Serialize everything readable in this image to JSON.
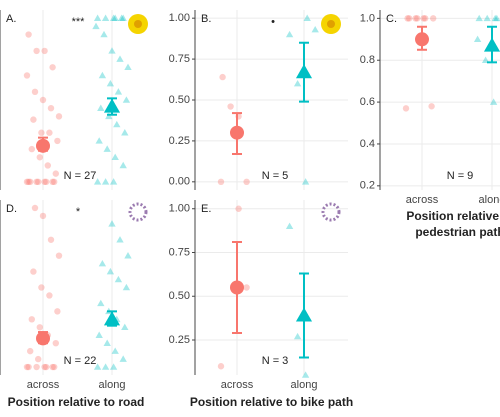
{
  "chart_data": [
    {
      "type": "dotplot",
      "panel": "A.",
      "significance": "***",
      "n_label": "N = 27",
      "ylim": [
        -0.05,
        1.05
      ],
      "series": [
        {
          "color": "#f8766d",
          "shape": "circle",
          "mean": 0.22,
          "lower": 0.19,
          "upper": 0.27,
          "points": [
            0,
            0,
            0,
            0,
            0,
            0,
            0,
            0,
            0,
            0.05,
            0.1,
            0.15,
            0.2,
            0.25,
            0.3,
            0.3,
            0.38,
            0.4,
            0.45,
            0.5,
            0.55,
            0.65,
            0.7,
            0.8,
            0.8,
            0.9
          ]
        },
        {
          "color": "#00bfc4",
          "shape": "triangle",
          "mean": 0.46,
          "lower": 0.41,
          "upper": 0.51,
          "points": [
            0,
            0,
            0,
            0.1,
            0.15,
            0.2,
            0.25,
            0.3,
            0.35,
            0.4,
            0.45,
            0.5,
            0.55,
            0.6,
            0.65,
            0.7,
            0.75,
            0.8,
            0.9,
            0.95,
            1,
            1,
            1,
            1,
            1,
            1
          ]
        }
      ]
    },
    {
      "type": "dotplot",
      "panel": "B.",
      "significance": "•",
      "n_label": "N = 5",
      "ylim": [
        -0.05,
        1.05
      ],
      "yticks": [
        {
          "value": 0,
          "label": "0.00"
        },
        {
          "value": 0.25,
          "label": "0.25"
        },
        {
          "value": 0.5,
          "label": "0.50"
        },
        {
          "value": 0.75,
          "label": "0.75"
        },
        {
          "value": 1,
          "label": "1.00"
        }
      ],
      "series": [
        {
          "color": "#f8766d",
          "shape": "circle",
          "mean": 0.3,
          "lower": 0.17,
          "upper": 0.42,
          "points": [
            0,
            0,
            0.4,
            0.46,
            0.64
          ]
        },
        {
          "color": "#00bfc4",
          "shape": "triangle",
          "mean": 0.67,
          "lower": 0.49,
          "upper": 0.85,
          "points": [
            0,
            0.6,
            0.9,
            0.93,
            1
          ]
        }
      ]
    },
    {
      "type": "dotplot",
      "panel": "C.",
      "n_label": "N = 9",
      "ylim": [
        0.18,
        1.04
      ],
      "yticks": [
        {
          "value": 0.2,
          "label": "0.2"
        },
        {
          "value": 0.4,
          "label": "0.4"
        },
        {
          "value": 0.6,
          "label": "0.6"
        },
        {
          "value": 0.8,
          "label": "0.8"
        },
        {
          "value": 1,
          "label": "1.0"
        }
      ],
      "categories": [
        "across",
        "along"
      ],
      "xlabel_lines": [
        "Position relative to",
        "pedestrian path"
      ],
      "series": [
        {
          "color": "#f8766d",
          "shape": "circle",
          "mean": 0.9,
          "lower": 0.85,
          "upper": 0.96,
          "points": [
            0.57,
            0.58,
            1,
            1,
            1,
            1,
            1,
            1,
            1
          ]
        },
        {
          "color": "#00bfc4",
          "shape": "triangle",
          "mean": 0.87,
          "lower": 0.79,
          "upper": 0.96,
          "points": [
            0.6,
            0.8,
            0.9,
            1,
            1,
            1,
            1,
            1,
            1
          ]
        }
      ]
    },
    {
      "type": "dotplot",
      "panel": "D.",
      "significance": "*",
      "n_label": "N = 22",
      "ylim": [
        -0.05,
        1.05
      ],
      "categories": [
        "across",
        "along"
      ],
      "xlabel": "Position relative to road",
      "series": [
        {
          "color": "#f8766d",
          "shape": "circle",
          "mean": 0.18,
          "lower": 0.15,
          "upper": 0.22,
          "points": [
            0,
            0,
            0,
            0,
            0,
            0,
            0,
            0.05,
            0.1,
            0.15,
            0.2,
            0.25,
            0.3,
            0.35,
            0.45,
            0.5,
            0.6,
            0.7,
            0.8,
            0.95,
            1
          ]
        },
        {
          "color": "#00bfc4",
          "shape": "triangle",
          "mean": 0.3,
          "lower": 0.26,
          "upper": 0.35,
          "points": [
            0,
            0,
            0,
            0.05,
            0.1,
            0.15,
            0.2,
            0.25,
            0.3,
            0.35,
            0.4,
            0.5,
            0.55,
            0.6,
            0.65,
            0.7,
            0.8,
            0.9
          ]
        }
      ]
    },
    {
      "type": "dotplot",
      "panel": "E.",
      "n_label": "N = 3",
      "ylim": [
        0.05,
        1.05
      ],
      "yticks": [
        {
          "value": 0.25,
          "label": "0.25"
        },
        {
          "value": 0.5,
          "label": "0.50"
        },
        {
          "value": 0.75,
          "label": "0.75"
        },
        {
          "value": 1,
          "label": "1.00"
        }
      ],
      "categories": [
        "across",
        "along"
      ],
      "xlabel": "Position relative to bike path",
      "series": [
        {
          "color": "#f8766d",
          "shape": "circle",
          "mean": 0.55,
          "lower": 0.29,
          "upper": 0.81,
          "points": [
            0.1,
            0.55,
            1
          ]
        },
        {
          "color": "#00bfc4",
          "shape": "triangle",
          "mean": 0.39,
          "lower": 0.15,
          "upper": 0.63,
          "points": [
            0.05,
            0.27,
            0.9
          ]
        }
      ]
    }
  ]
}
